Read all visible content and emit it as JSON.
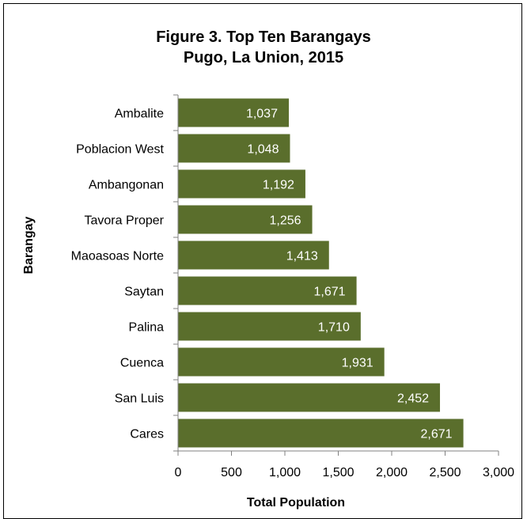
{
  "chart_data": {
    "type": "bar",
    "orientation": "horizontal",
    "title_lines": [
      "Figure 3. Top Ten Barangays",
      "Pugo, La Union, 2015"
    ],
    "xlabel": "Total Population",
    "ylabel": "Barangay",
    "categories": [
      "Ambalite",
      "Poblacion West",
      "Ambangonan",
      "Tavora Proper",
      "Maoasoas Norte",
      "Saytan",
      "Palina",
      "Cuenca",
      "San Luis",
      "Cares"
    ],
    "values": [
      1037,
      1048,
      1192,
      1256,
      1413,
      1671,
      1710,
      1931,
      2452,
      2671
    ],
    "value_labels": [
      "1,037",
      "1,048",
      "1,192",
      "1,256",
      "1,413",
      "1,671",
      "1,710",
      "1,931",
      "2,452",
      "2,671"
    ],
    "xlim": [
      0,
      3000
    ],
    "x_ticks": [
      0,
      500,
      1000,
      1500,
      2000,
      2500,
      3000
    ],
    "x_tick_labels": [
      "0",
      "500",
      "1,000",
      "1,500",
      "2,000",
      "2,500",
      "3,000"
    ],
    "grid": false,
    "legend": "none",
    "bar_color": "#5a6e2c"
  }
}
